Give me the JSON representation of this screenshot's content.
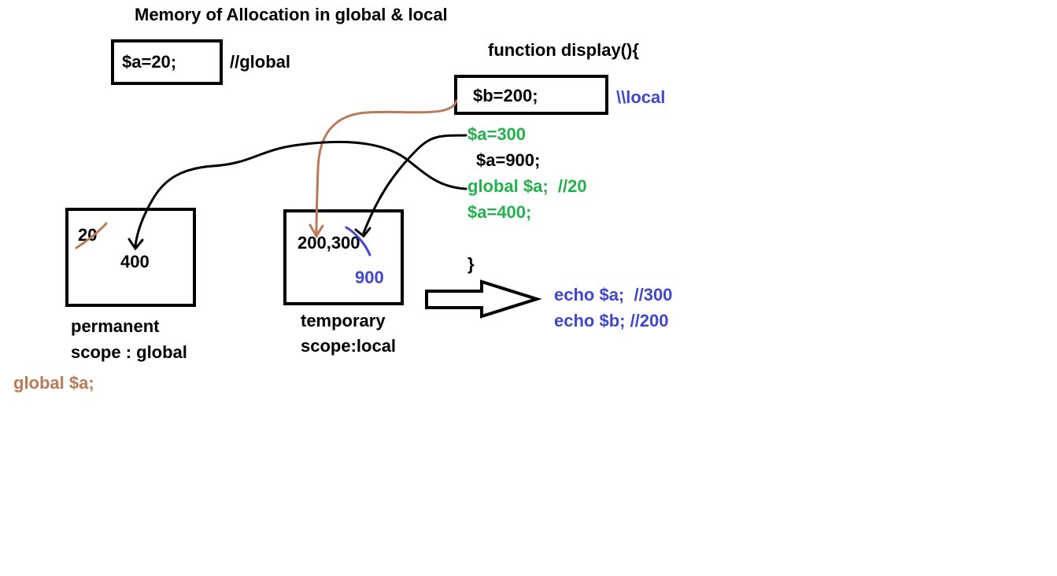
{
  "title": "Memory of Allocation in global & local",
  "colors": {
    "black": "#000000",
    "green": "#22b14c",
    "blue": "#3f48cc",
    "brown": "#b97a57"
  },
  "global_decl": {
    "code": "$a=20;",
    "comment": "//global"
  },
  "function_block": {
    "header": "function display(){",
    "b_assign": "$b=200;",
    "b_comment": "\\\\local",
    "lines": {
      "a300": "$a=300",
      "a900": "$a=900;",
      "global_stmt": "global $a;  //20",
      "a400": "$a=400;",
      "close": "}"
    }
  },
  "permanent_memory": {
    "old_value": "20",
    "new_value": "400",
    "label_line1": "permanent",
    "label_line2": "scope : global"
  },
  "temporary_memory": {
    "values": "200,300",
    "new_value": "900",
    "label_line1": "temporary",
    "label_line2": "scope:local"
  },
  "global_note": "global $a;",
  "output": {
    "echo_a": "echo $a;  //300",
    "echo_b": "echo $b; //200"
  }
}
